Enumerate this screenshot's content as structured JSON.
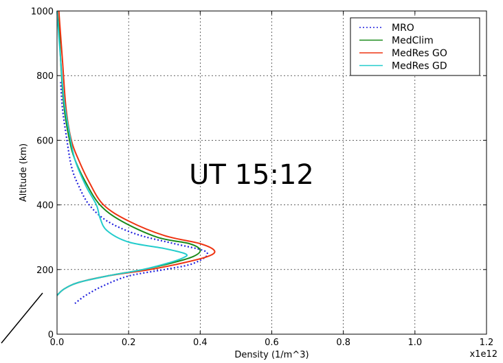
{
  "chart_data": {
    "type": "line",
    "title": "",
    "xlabel": "Density (1/m^3)",
    "ylabel": "Altitude (km)",
    "xlim": [
      0,
      1.2
    ],
    "ylim": [
      0,
      1000
    ],
    "x_offset_label": "x1e12",
    "x_ticks": [
      "0.0",
      "0.2",
      "0.4",
      "0.6",
      "0.8",
      "1.0",
      "1.2"
    ],
    "y_ticks": [
      "0",
      "200",
      "400",
      "600",
      "800",
      "1000"
    ],
    "grid": true,
    "legend_position": "top-right",
    "annotation": "UT 15:12",
    "series": [
      {
        "name": "MRO",
        "color": "#1f1fdd",
        "style": "dotted",
        "points": [
          [
            0.05,
            95
          ],
          [
            0.08,
            120
          ],
          [
            0.13,
            150
          ],
          [
            0.2,
            180
          ],
          [
            0.3,
            200
          ],
          [
            0.37,
            215
          ],
          [
            0.41,
            235
          ],
          [
            0.42,
            250
          ],
          [
            0.4,
            262
          ],
          [
            0.32,
            282
          ],
          [
            0.22,
            310
          ],
          [
            0.14,
            350
          ],
          [
            0.09,
            400
          ],
          [
            0.06,
            460
          ],
          [
            0.04,
            520
          ],
          [
            0.025,
            620
          ],
          [
            0.015,
            700
          ],
          [
            0.01,
            780
          ]
        ]
      },
      {
        "name": "MedClim",
        "color": "#1a8a1a",
        "style": "solid",
        "points": [
          [
            0.0,
            120
          ],
          [
            0.02,
            140
          ],
          [
            0.06,
            160
          ],
          [
            0.14,
            180
          ],
          [
            0.24,
            200
          ],
          [
            0.32,
            220
          ],
          [
            0.38,
            240
          ],
          [
            0.4,
            260
          ],
          [
            0.37,
            280
          ],
          [
            0.28,
            300
          ],
          [
            0.18,
            350
          ],
          [
            0.12,
            400
          ],
          [
            0.08,
            470
          ],
          [
            0.05,
            540
          ],
          [
            0.035,
            600
          ],
          [
            0.02,
            700
          ],
          [
            0.01,
            850
          ],
          [
            0.005,
            1000
          ]
        ]
      },
      {
        "name": "MedRes GO",
        "color": "#ee3311",
        "style": "solid",
        "points": [
          [
            0.0,
            120
          ],
          [
            0.02,
            140
          ],
          [
            0.06,
            160
          ],
          [
            0.14,
            180
          ],
          [
            0.26,
            200
          ],
          [
            0.35,
            220
          ],
          [
            0.42,
            240
          ],
          [
            0.44,
            258
          ],
          [
            0.4,
            280
          ],
          [
            0.3,
            305
          ],
          [
            0.2,
            350
          ],
          [
            0.13,
            400
          ],
          [
            0.09,
            470
          ],
          [
            0.06,
            540
          ],
          [
            0.04,
            600
          ],
          [
            0.025,
            700
          ],
          [
            0.015,
            850
          ],
          [
            0.005,
            1000
          ]
        ]
      },
      {
        "name": "MedRes GD",
        "color": "#22cccc",
        "style": "solid",
        "points": [
          [
            0.0,
            120
          ],
          [
            0.02,
            140
          ],
          [
            0.06,
            160
          ],
          [
            0.14,
            180
          ],
          [
            0.24,
            200
          ],
          [
            0.31,
            220
          ],
          [
            0.35,
            235
          ],
          [
            0.36,
            248
          ],
          [
            0.3,
            265
          ],
          [
            0.2,
            285
          ],
          [
            0.14,
            320
          ],
          [
            0.12,
            360
          ],
          [
            0.11,
            400
          ],
          [
            0.08,
            460
          ],
          [
            0.05,
            540
          ],
          [
            0.035,
            620
          ],
          [
            0.02,
            720
          ],
          [
            0.01,
            850
          ],
          [
            0.0,
            1000
          ]
        ]
      }
    ]
  }
}
